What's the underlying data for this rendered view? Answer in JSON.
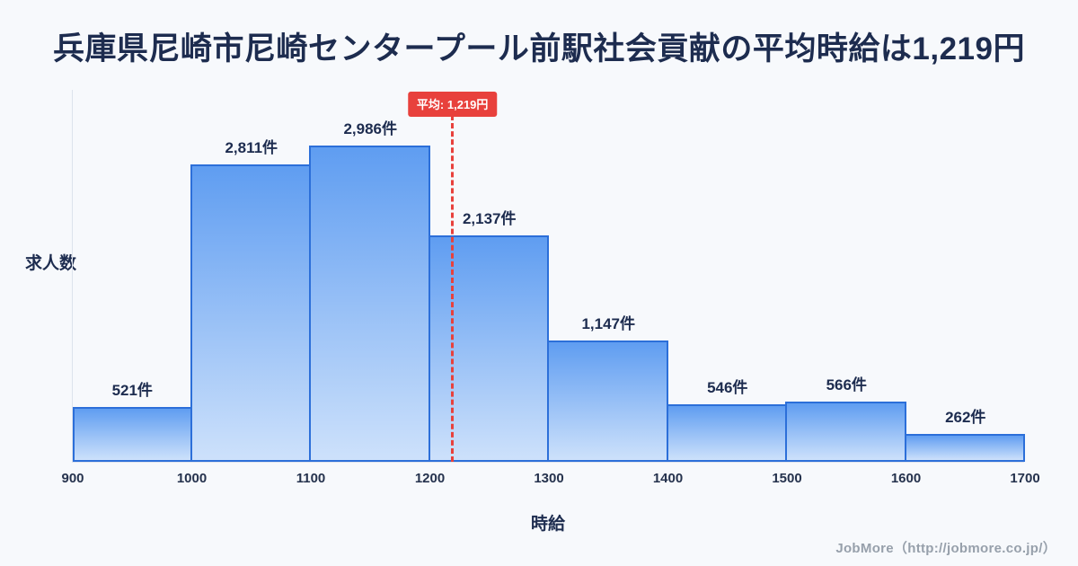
{
  "page": {
    "title": "兵庫県尼崎市尼崎センタープール前駅社会貢献の平均時給は1,219円",
    "footer_credit": "JobMore（http://jobmore.co.jp/）"
  },
  "chart_data": {
    "type": "bar",
    "title": "兵庫県尼崎市尼崎センタープール前駅社会貢献の平均時給は1,219円",
    "xlabel": "時給",
    "ylabel": "求人数",
    "x_tick_labels": [
      "900",
      "1000",
      "1100",
      "1200",
      "1300",
      "1400",
      "1500",
      "1600",
      "1700"
    ],
    "bin_edges": [
      900,
      1000,
      1100,
      1200,
      1300,
      1400,
      1500,
      1600,
      1700
    ],
    "values": [
      521,
      2811,
      2986,
      2137,
      1147,
      546,
      566,
      262
    ],
    "bar_labels": [
      "521件",
      "2,811件",
      "2,986件",
      "2,137件",
      "1,147件",
      "546件",
      "566件",
      "262件"
    ],
    "average_line": {
      "value": 1219,
      "label": "平均: 1,219円"
    },
    "xlim": [
      900,
      1700
    ],
    "ylim": [
      0,
      3200
    ],
    "grid": false,
    "legend": "none",
    "colors": {
      "bar_gradient_top": "#5f9df1",
      "bar_gradient_bottom": "#cde1fb",
      "bar_border": "#2c6fd9",
      "average_line": "#e8413c",
      "title_text": "#1d2c4f",
      "label_text": "#1d2c4f",
      "tick_text": "#25324d",
      "background": "#f7f9fc",
      "footer_text": "#97a0ab"
    }
  }
}
